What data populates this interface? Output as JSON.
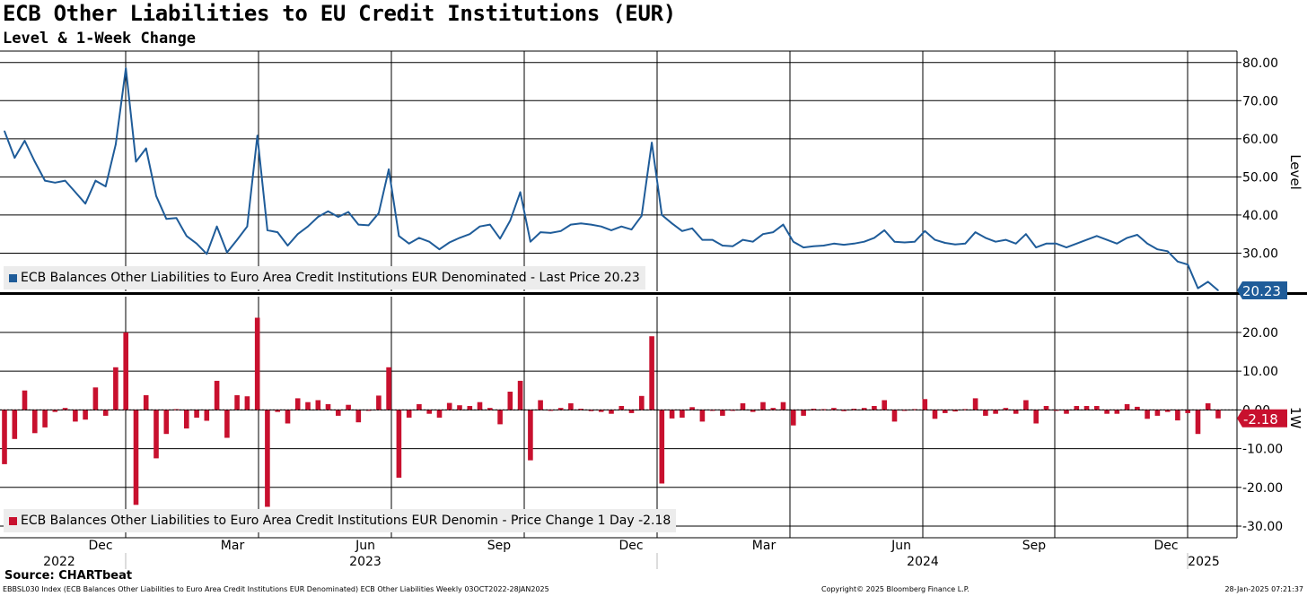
{
  "title": "ECB Other Liabilities to EU Credit Institutions (EUR)",
  "subtitle": "Level & 1-Week Change",
  "source": "Source: CHARTbeat",
  "footer": {
    "left": "EBBSL030 Index (ECB Balances Other Liabilities to Euro Area Credit Institutions EUR Denominated) ECB Other Liabilities  Weekly 03OCT2022-28JAN2025",
    "center": "Copyright© 2025 Bloomberg Finance L.P.",
    "right": "28-Jan-2025 07:21:37"
  },
  "colors": {
    "level": "#1f5c99",
    "change": "#c8102e",
    "grid": "#000000"
  },
  "chart_data": [
    {
      "type": "line",
      "ylabel": "Level",
      "ylim": [
        20,
        83
      ],
      "yticks": [
        30,
        40,
        50,
        60,
        70,
        80
      ],
      "ytick_labels": [
        "30.00",
        "40.00",
        "50.00",
        "60.00",
        "70.00",
        "80.00"
      ],
      "legend": "ECB Balances Other Liabilities to Euro Area Credit Institutions EUR Denominated - Last Price 20.23",
      "last_value_label": "20.23",
      "series": [
        {
          "values": [
            62.0,
            55.0,
            59.5,
            54.0,
            49.0,
            48.5,
            49.0,
            46.0,
            43.0,
            49.0,
            47.5,
            58.5,
            78.5,
            54.0,
            57.5,
            45.0,
            39.0,
            39.2,
            34.5,
            32.5,
            29.8,
            37.0,
            30.2,
            33.5,
            37.0,
            60.8,
            36.0,
            35.5,
            32.0,
            35.0,
            37.0,
            39.5,
            41.0,
            39.5,
            40.8,
            37.5,
            37.3,
            40.5,
            52.0,
            34.5,
            32.5,
            34.0,
            33.0,
            31.0,
            32.8,
            34.0,
            35.0,
            37.0,
            37.5,
            33.8,
            38.5,
            46.0,
            33.0,
            35.5,
            35.3,
            35.8,
            37.5,
            37.8,
            37.5,
            37.0,
            36.0,
            37.0,
            36.2,
            39.8,
            59.0,
            40.0,
            37.8,
            35.8,
            36.5,
            33.5,
            33.5,
            32.0,
            31.8,
            33.5,
            33.0,
            35.0,
            35.5,
            37.5,
            33.0,
            31.5,
            31.8,
            32.0,
            32.5,
            32.2,
            32.5,
            33.0,
            34.0,
            36.0,
            33.0,
            32.8,
            33.0,
            35.8,
            33.5,
            32.7,
            32.3,
            32.5,
            35.5,
            34.0,
            33.0,
            33.5,
            32.5,
            35.0,
            31.5,
            32.5,
            32.5,
            31.5,
            32.5,
            33.5,
            34.5,
            33.5,
            32.5,
            34.0,
            34.8,
            32.5,
            31.0,
            30.5,
            27.8,
            27.0,
            20.8,
            22.5,
            20.23
          ]
        }
      ]
    },
    {
      "type": "bar",
      "ylabel": "1W",
      "ylim": [
        -33,
        29
      ],
      "yticks": [
        -30,
        -20,
        -10,
        0,
        10,
        20
      ],
      "ytick_labels": [
        "-30.00",
        "-20.00",
        "-10.00",
        "0.00",
        "10.00",
        "20.00"
      ],
      "legend": "ECB Balances Other Liabilities to Euro Area Credit Institutions EUR Denomin - Price Change 1 Day -2.18",
      "last_value_label": "-2.18",
      "series": [
        {
          "values": [
            -14.0,
            -7.5,
            5.0,
            -6.0,
            -4.5,
            -0.5,
            0.5,
            -3.0,
            -2.5,
            5.8,
            -1.5,
            11.0,
            20.0,
            -24.5,
            3.8,
            -12.5,
            -6.2,
            0.2,
            -4.8,
            -2.0,
            -2.8,
            7.5,
            -7.2,
            3.8,
            3.5,
            23.8,
            -25.0,
            -0.5,
            -3.5,
            3.0,
            2.0,
            2.5,
            1.5,
            -1.5,
            1.3,
            -3.2,
            -0.2,
            3.7,
            11.0,
            -17.5,
            -2.0,
            1.5,
            -1.0,
            -2.0,
            1.8,
            1.2,
            1.0,
            2.0,
            0.5,
            -3.7,
            4.7,
            7.5,
            -13.0,
            2.5,
            -0.2,
            0.5,
            1.7,
            0.3,
            -0.3,
            -0.5,
            -1.0,
            1.0,
            -0.8,
            3.6,
            19.0,
            -19.0,
            -2.2,
            -2.0,
            0.7,
            -3.0,
            0.0,
            -1.5,
            -0.2,
            1.7,
            -0.5,
            2.0,
            0.5,
            2.0,
            -4.0,
            -1.5,
            0.3,
            0.2,
            0.5,
            -0.3,
            0.3,
            0.5,
            1.0,
            2.5,
            -3.0,
            -0.2,
            0.2,
            2.8,
            -2.3,
            -0.8,
            -0.4,
            0.2,
            3.0,
            -1.5,
            -1.0,
            0.5,
            -1.0,
            2.5,
            -3.5,
            1.0,
            0.0,
            -1.0,
            1.0,
            1.0,
            1.0,
            -1.0,
            -1.0,
            1.5,
            0.8,
            -2.3,
            -1.5,
            -0.5,
            -2.7,
            -0.8,
            -6.2,
            1.7,
            -2.18
          ]
        }
      ]
    }
  ],
  "x_axis": {
    "month_labels": [
      "Dec",
      "Mar",
      "Jun",
      "Sep",
      "Dec",
      "Mar",
      "Jun",
      "Sep",
      "Dec"
    ],
    "year_labels": [
      "2022",
      "2023",
      "2024",
      "2025"
    ]
  }
}
